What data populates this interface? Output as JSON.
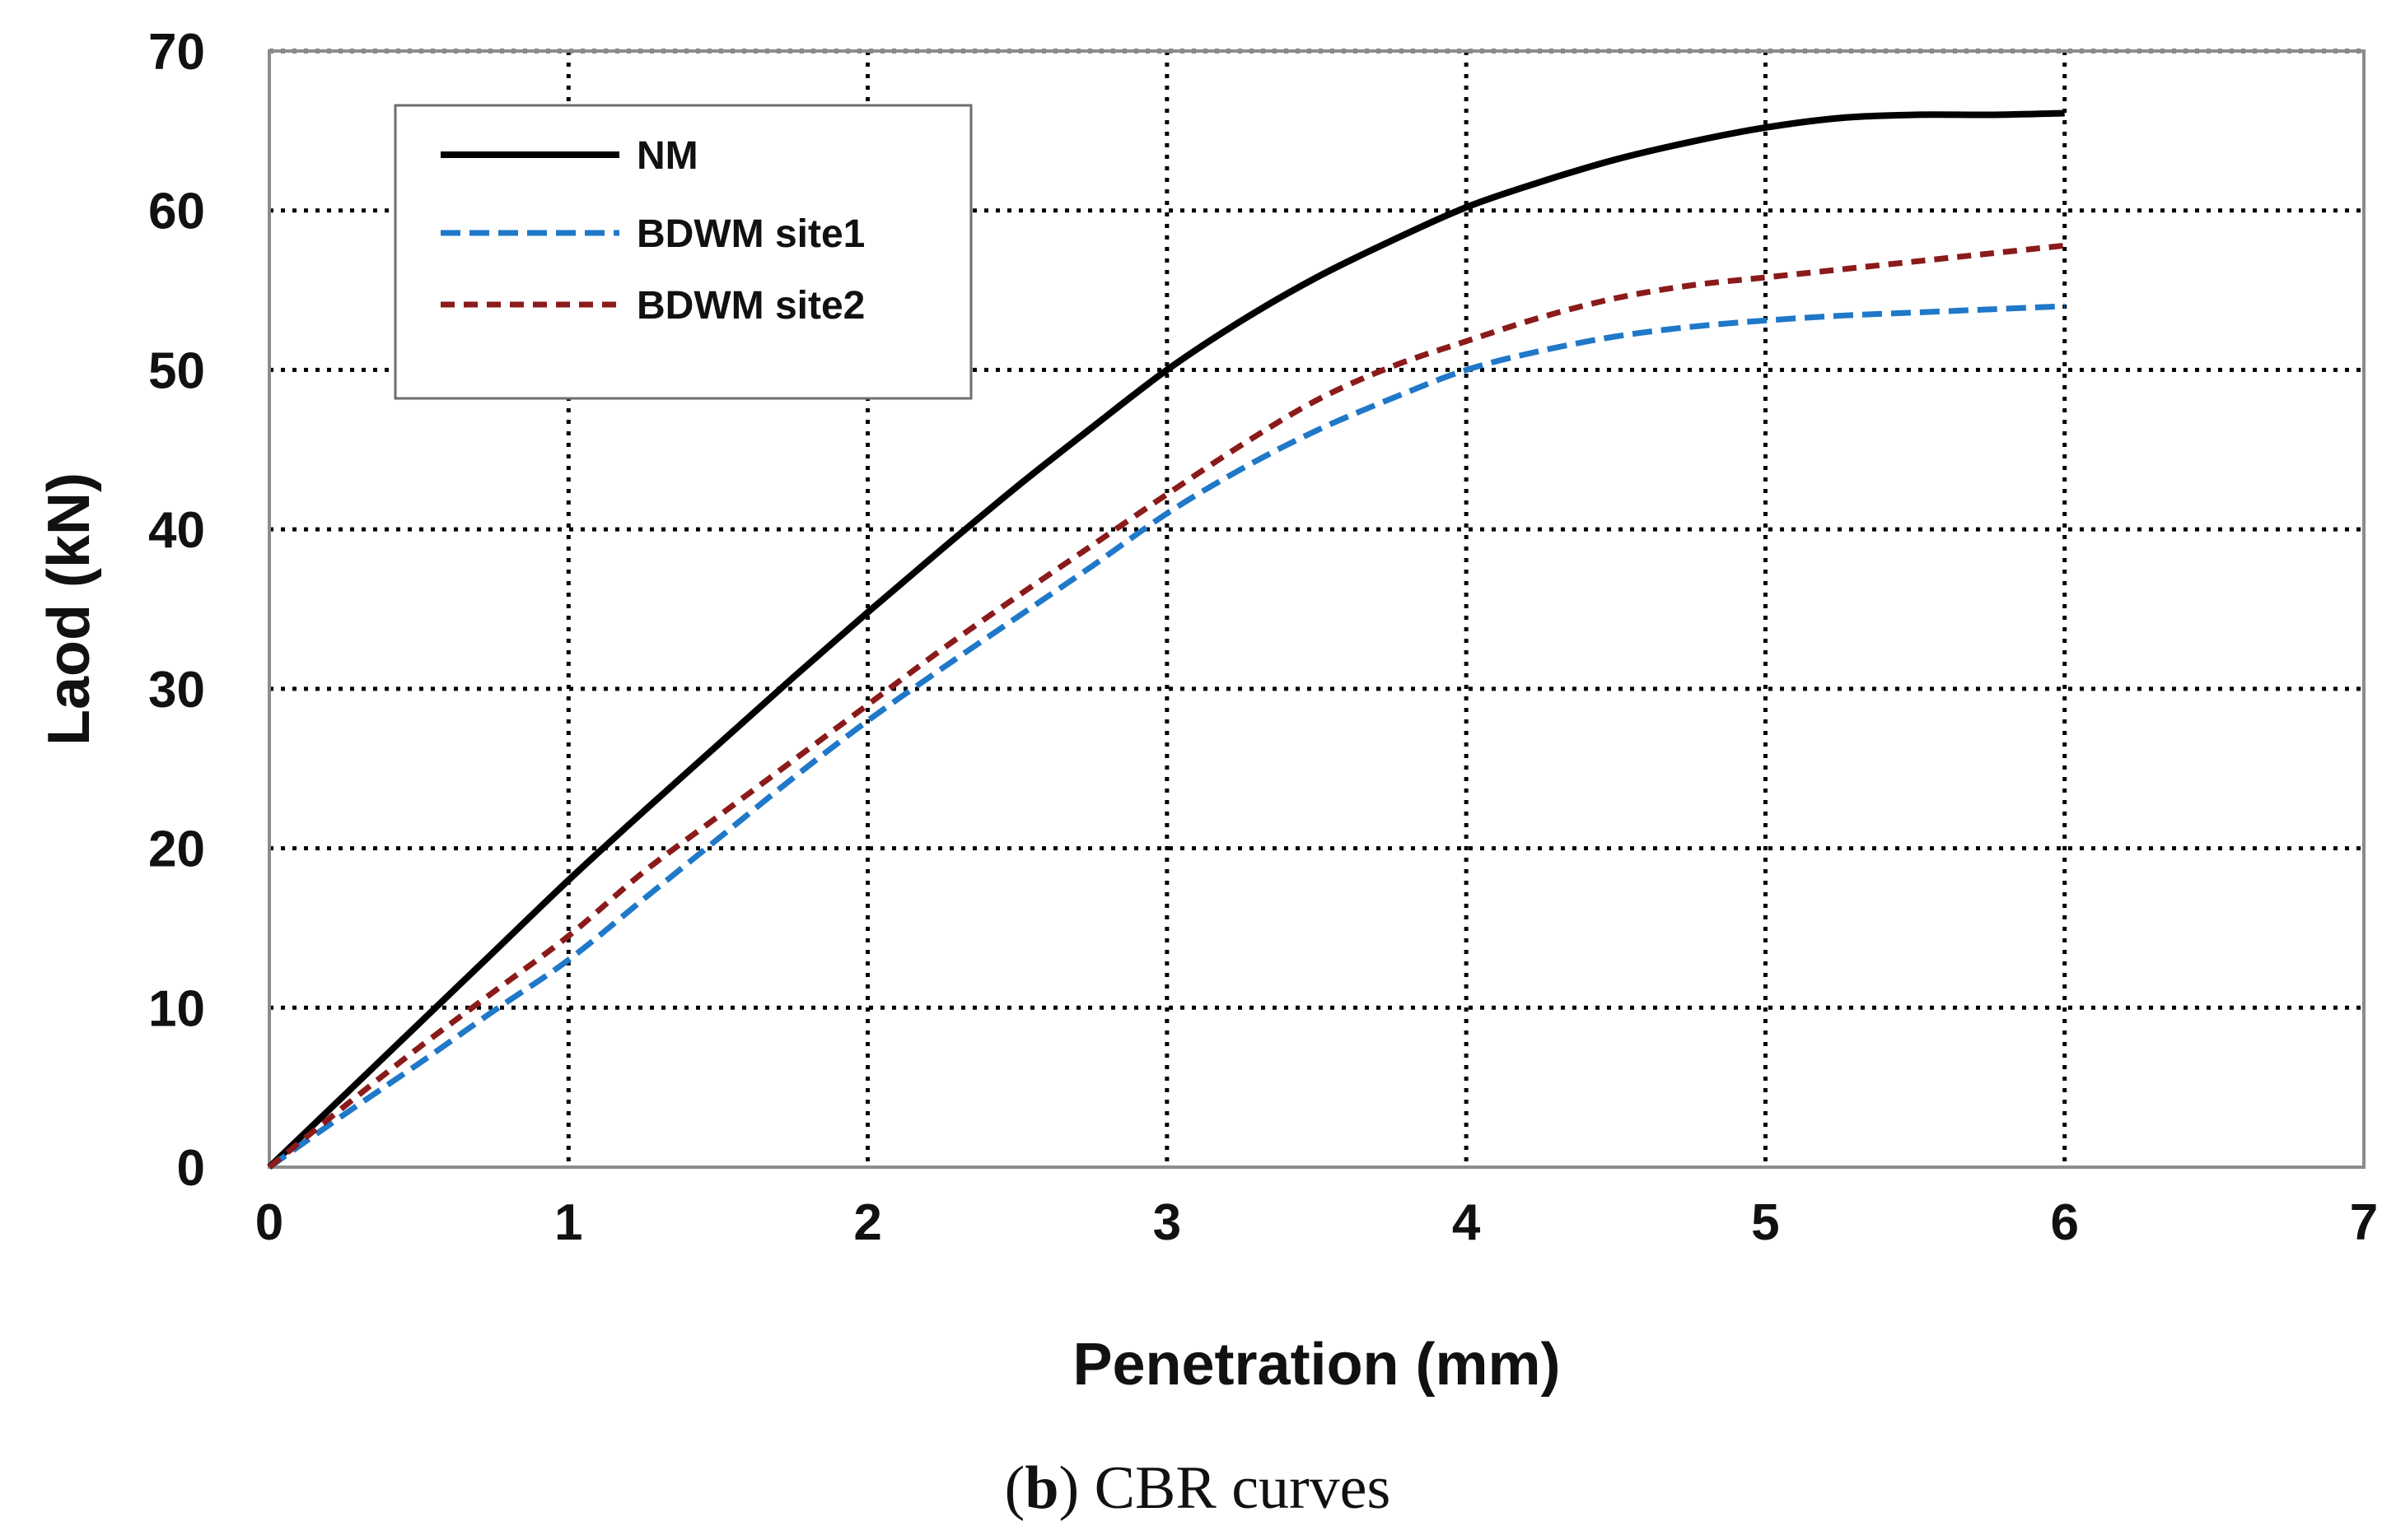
{
  "chart_data": {
    "type": "line",
    "title": "",
    "xlabel": "Penetration (mm)",
    "ylabel": "Laod (kN)",
    "xlim": [
      0,
      7
    ],
    "ylim": [
      0,
      70
    ],
    "x_ticks": [
      0,
      1,
      2,
      3,
      4,
      5,
      6,
      7
    ],
    "y_ticks": [
      0,
      10,
      20,
      30,
      40,
      50,
      60,
      70
    ],
    "x_tick_labels": [
      "0",
      "1",
      "2",
      "3",
      "4",
      "5",
      "6",
      "7"
    ],
    "y_tick_labels": [
      "0",
      "10",
      "20",
      "30",
      "40",
      "50",
      "60",
      "70"
    ],
    "grid": true,
    "legend_position": "top-left",
    "series": [
      {
        "name": "NM",
        "color": "#000000",
        "style": "solid",
        "x": [
          0,
          0.25,
          0.5,
          0.75,
          1,
          1.25,
          1.5,
          1.75,
          2,
          2.25,
          2.5,
          2.75,
          3,
          3.25,
          3.5,
          3.75,
          4,
          4.25,
          4.5,
          4.75,
          5,
          5.25,
          5.5,
          5.75,
          6
        ],
        "y": [
          0,
          4.5,
          9,
          13.5,
          18,
          22.3,
          26.5,
          30.7,
          34.8,
          38.8,
          42.7,
          46.4,
          50,
          53.1,
          55.8,
          58.1,
          60.2,
          61.8,
          63.2,
          64.3,
          65.2,
          65.8,
          66,
          66,
          66.1
        ]
      },
      {
        "name": "BDWM site1",
        "color": "#1f78c8",
        "style": "dashed",
        "x": [
          0,
          0.25,
          0.5,
          0.75,
          1,
          1.25,
          1.5,
          1.75,
          2,
          2.25,
          2.5,
          2.75,
          3,
          3.25,
          3.5,
          3.75,
          4,
          4.25,
          4.5,
          4.75,
          5,
          5.25,
          5.5,
          5.75,
          6
        ],
        "y": [
          0,
          3.3,
          6.5,
          9.8,
          13,
          16.8,
          20.6,
          24.4,
          28,
          31.3,
          34.5,
          37.7,
          41,
          43.8,
          46.2,
          48.2,
          50,
          51.2,
          52.1,
          52.7,
          53.1,
          53.4,
          53.6,
          53.8,
          54
        ]
      },
      {
        "name": "BDWM site2",
        "color": "#8b1a1a",
        "style": "dashed",
        "x": [
          0,
          0.25,
          0.5,
          0.75,
          1,
          1.25,
          1.5,
          1.75,
          2,
          2.25,
          2.5,
          2.75,
          3,
          3.25,
          3.5,
          3.75,
          4,
          4.25,
          4.5,
          4.75,
          5,
          5.25,
          5.5,
          5.75,
          6
        ],
        "y": [
          0,
          3.8,
          7.5,
          11,
          14.5,
          18.5,
          22,
          25.5,
          29,
          32.5,
          35.8,
          39,
          42.2,
          45.3,
          48.1,
          50.2,
          51.8,
          53.3,
          54.5,
          55.3,
          55.8,
          56.3,
          56.8,
          57.3,
          57.8
        ]
      }
    ]
  },
  "caption": {
    "open": "(",
    "letter": "b",
    "close": ")",
    "text": " CBR curves"
  }
}
